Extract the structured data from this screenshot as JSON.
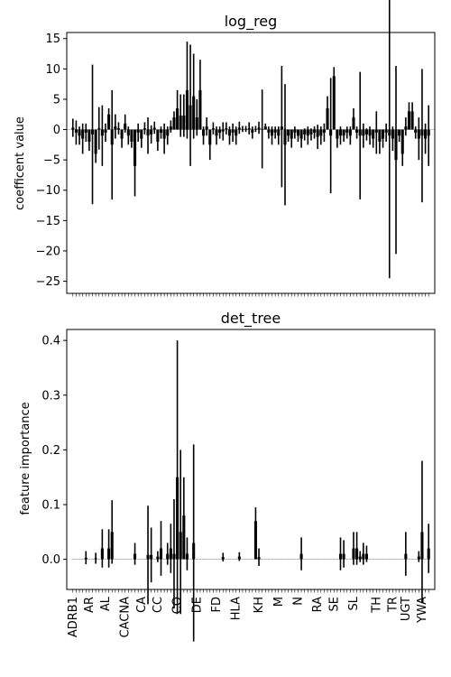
{
  "chart_data": [
    {
      "type": "bar",
      "title": "log_reg",
      "ylabel": "coefficent value",
      "xlabel": "",
      "ylim": [
        -27,
        16
      ],
      "yticks": [
        15,
        10,
        5,
        0,
        -5,
        -10,
        -15,
        -20,
        -25
      ],
      "grid": false,
      "error_bars": true,
      "bar_color": "#000000",
      "zero_line_color": "#c8c8c8",
      "n_features": 110,
      "values": [
        0.3,
        -0.5,
        -1.0,
        -1.5,
        -0.5,
        -2.0,
        -0.8,
        -4.0,
        0.2,
        -1.0,
        -0.5,
        2.5,
        -2.5,
        0.5,
        0.2,
        -1.5,
        1.0,
        -1.0,
        -2.0,
        -6.0,
        -0.5,
        -1.5,
        0.2,
        -1.0,
        -0.8,
        0.3,
        -2.0,
        -0.5,
        -1.5,
        -1.0,
        0.5,
        2.0,
        3.5,
        2.3,
        2.3,
        6.5,
        4.0,
        5.5,
        2.0,
        6.5,
        -1.0,
        0.5,
        -2.5,
        0.2,
        -1.0,
        -0.5,
        -0.3,
        0.2,
        -1.0,
        -0.5,
        -1.0,
        0.3,
        0.1,
        0.1,
        0.2,
        -0.5,
        0.1,
        0.3,
        0.1,
        0.5,
        -0.5,
        -1.0,
        -0.5,
        -1.0,
        0.5,
        -2.5,
        -1.0,
        -1.5,
        -0.5,
        -1.0,
        -1.5,
        -0.8,
        -1.0,
        -0.8,
        -0.5,
        -1.2,
        -1.0,
        -0.5,
        3.5,
        -1.0,
        8.8,
        -1.5,
        -1.0,
        -1.0,
        -0.5,
        -1.0,
        2.0,
        -0.5,
        -1.0,
        -1.0,
        -0.8,
        -1.0,
        -1.5,
        -0.5,
        -2.0,
        -1.5,
        -0.5,
        -1.0,
        -1.5,
        -5.0,
        -1.0,
        -4.0,
        0.5,
        3.0,
        3.0,
        -0.5,
        -1.5,
        -1.0,
        -1.5,
        -1.0
      ],
      "errors": [
        1.5,
        2.0,
        1.5,
        2.5,
        1.5,
        1.5,
        11.5,
        1.5,
        3.5,
        5.0,
        1.5,
        1.0,
        9.0,
        2.0,
        1.0,
        1.5,
        1.5,
        1.5,
        1.0,
        5.0,
        1.5,
        1.5,
        1.0,
        3.0,
        1.5,
        1.0,
        1.5,
        1.0,
        2.5,
        1.5,
        1.0,
        1.0,
        3.0,
        3.5,
        3.5,
        8.0,
        10.0,
        7.0,
        3.0,
        5.0,
        1.5,
        1.5,
        2.5,
        1.0,
        1.5,
        1.0,
        1.5,
        1.0,
        1.5,
        1.5,
        1.5,
        1.0,
        0.5,
        0.5,
        1.0,
        1.0,
        0.5,
        1.0,
        6.5,
        0.5,
        1.0,
        1.5,
        1.0,
        1.5,
        10.0,
        10.0,
        1.0,
        1.5,
        1.0,
        1.0,
        1.5,
        1.0,
        1.5,
        1.0,
        1.0,
        2.0,
        1.5,
        1.5,
        2.0,
        9.5,
        1.5,
        1.5,
        1.5,
        1.0,
        1.0,
        1.5,
        1.5,
        1.0,
        10.5,
        2.0,
        1.0,
        1.5,
        1.5,
        3.5,
        2.0,
        1.5,
        1.5,
        23.5,
        2.0,
        15.5,
        1.0,
        2.0,
        1.5,
        1.5,
        1.5,
        1.0,
        3.5,
        11.0,
        2.5,
        5.0
      ]
    },
    {
      "type": "bar",
      "title": "det_tree",
      "ylabel": "feature importance",
      "xlabel": "",
      "ylim": [
        -0.055,
        0.42
      ],
      "yticks": [
        0.4,
        0.3,
        0.2,
        0.1,
        0.0
      ],
      "grid": false,
      "error_bars": true,
      "bar_color": "#000000",
      "n_features": 110,
      "values": [
        0,
        0,
        0,
        0,
        0.003,
        0,
        0,
        0.002,
        0,
        0.02,
        0,
        0.02,
        0.05,
        0,
        0,
        0,
        0,
        0,
        0,
        0.01,
        0,
        0,
        0,
        0.008,
        0.008,
        0,
        0.005,
        0.02,
        0,
        0.01,
        0.02,
        0.01,
        0.15,
        0.05,
        0.08,
        0.01,
        0,
        0.03,
        0,
        0,
        0,
        0,
        0,
        0,
        0,
        0,
        0.004,
        0,
        0,
        0,
        0,
        0.005,
        0,
        0,
        0,
        0,
        0.07,
        0.004,
        0,
        0,
        0,
        0,
        0,
        0,
        0,
        0,
        0,
        0,
        0,
        0,
        0.01,
        0,
        0,
        0,
        0,
        0,
        0,
        0,
        0,
        0,
        0,
        0,
        0.01,
        0.01,
        0,
        0,
        0.02,
        0.02,
        0.005,
        0.01,
        0.01,
        0,
        0,
        0,
        0,
        0,
        0,
        0,
        0,
        0,
        0,
        0,
        0.01,
        0,
        0,
        0,
        0.005,
        0.05,
        0,
        0.02
      ],
      "errors": [
        0,
        0,
        0,
        0,
        0.012,
        0,
        0,
        0.01,
        0,
        0.035,
        0,
        0.035,
        0.058,
        0,
        0,
        0,
        0,
        0,
        0,
        0.02,
        0,
        0,
        0,
        0.09,
        0.05,
        0,
        0.01,
        0.05,
        0,
        0.02,
        0.045,
        0.1,
        0.25,
        0.15,
        0.07,
        0.03,
        0,
        0.18,
        0,
        0,
        0,
        0,
        0,
        0,
        0,
        0,
        0.008,
        0,
        0,
        0,
        0,
        0.008,
        0,
        0,
        0,
        0,
        0.025,
        0.016,
        0,
        0,
        0,
        0,
        0,
        0,
        0,
        0,
        0,
        0,
        0,
        0,
        0.03,
        0,
        0,
        0,
        0,
        0,
        0,
        0,
        0,
        0,
        0,
        0,
        0.03,
        0.025,
        0,
        0,
        0.03,
        0.03,
        0.01,
        0.02,
        0.015,
        0,
        0,
        0,
        0,
        0,
        0,
        0,
        0,
        0,
        0,
        0,
        0.04,
        0,
        0,
        0,
        0.01,
        0.13,
        0,
        0.045
      ],
      "x_labels_visible": [
        {
          "index": 0,
          "label": "ADRB1"
        },
        {
          "index": 5,
          "label": "AR"
        },
        {
          "index": 10,
          "label": "AL"
        },
        {
          "index": 16,
          "label": "CACNA"
        },
        {
          "index": 21,
          "label": "CA"
        },
        {
          "index": 26,
          "label": "CC"
        },
        {
          "index": 32,
          "label": "CO"
        },
        {
          "index": 38,
          "label": "DE"
        },
        {
          "index": 44,
          "label": "FD"
        },
        {
          "index": 50,
          "label": "HLA"
        },
        {
          "index": 57,
          "label": "KH"
        },
        {
          "index": 63,
          "label": "M"
        },
        {
          "index": 69,
          "label": "N"
        },
        {
          "index": 75,
          "label": "RA"
        },
        {
          "index": 80,
          "label": "SE"
        },
        {
          "index": 86,
          "label": "SL"
        },
        {
          "index": 93,
          "label": "TH"
        },
        {
          "index": 98,
          "label": "TR"
        },
        {
          "index": 102,
          "label": "UGT"
        },
        {
          "index": 107,
          "label": "YWA"
        }
      ]
    }
  ]
}
